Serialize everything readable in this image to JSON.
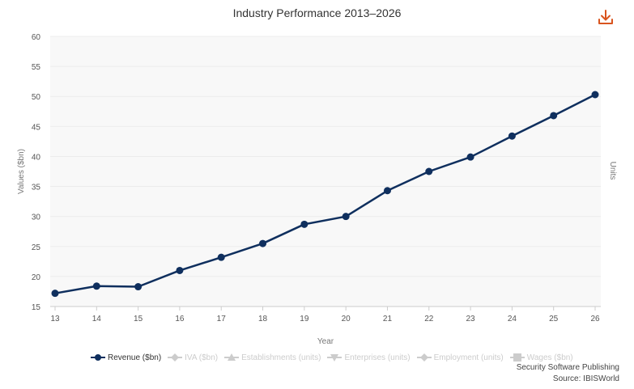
{
  "title": "Industry Performance 2013–2026",
  "icons": {
    "download": "download-icon"
  },
  "colors": {
    "series": "#0f2f5e",
    "accent": "#d9541e",
    "plot_bg": "#f8f8f8",
    "inactive": "#cccccc"
  },
  "chart_data": {
    "type": "line",
    "title": "Industry Performance 2013–2026",
    "xlabel": "Year",
    "ylabel": "Values ($bn)",
    "y2label": "Units",
    "ylim": [
      15,
      60
    ],
    "yticks": [
      15,
      20,
      25,
      30,
      35,
      40,
      45,
      50,
      55,
      60
    ],
    "categories": [
      "13",
      "14",
      "15",
      "16",
      "17",
      "18",
      "19",
      "20",
      "21",
      "22",
      "23",
      "24",
      "25",
      "26"
    ],
    "series": [
      {
        "name": "Revenue ($bn)",
        "values": [
          17.2,
          18.4,
          18.3,
          21.0,
          23.2,
          25.5,
          28.7,
          30.0,
          34.3,
          37.5,
          39.9,
          43.4,
          46.8,
          50.3
        ]
      }
    ],
    "grid": true
  },
  "legend": [
    {
      "label": "Revenue ($bn)",
      "symbol": "circle",
      "active": true
    },
    {
      "label": "IVA ($bn)",
      "symbol": "diamond",
      "active": false
    },
    {
      "label": "Establishments (units)",
      "symbol": "triangle",
      "active": false
    },
    {
      "label": "Enterprises (units)",
      "symbol": "triangle-down",
      "active": false
    },
    {
      "label": "Employment (units)",
      "symbol": "diamond",
      "active": false
    },
    {
      "label": "Wages ($bn)",
      "symbol": "square",
      "active": false
    }
  ],
  "credits": {
    "line1": "Security Software Publishing",
    "line2": "Source: IBISWorld"
  }
}
